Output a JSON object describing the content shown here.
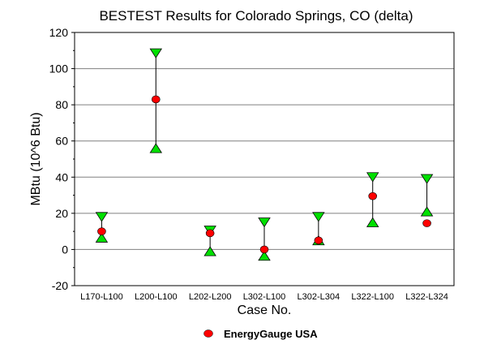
{
  "chart_data": {
    "type": "scatter",
    "title": "BESTEST Results for Colorado Springs, CO (delta)",
    "xlabel": "Case No.",
    "ylabel": "MBtu (10^6 Btu)",
    "ylim": [
      -20,
      120
    ],
    "yticks": [
      -20,
      0,
      20,
      40,
      60,
      80,
      100,
      120
    ],
    "grid": "horizontal",
    "legend_position": "bottom-center",
    "categories": [
      "L170-L100",
      "L200-L100",
      "L202-L200",
      "L302-L100",
      "L302-L304",
      "L322-L100",
      "L322-L324"
    ],
    "range_min": [
      6.5,
      56,
      -1,
      -3.5,
      5,
      15,
      21
    ],
    "range_max": [
      18,
      108.5,
      10.5,
      15,
      18,
      40,
      39
    ],
    "series": [
      {
        "name": "EnergyGauge USA",
        "values": [
          10,
          83,
          9,
          0,
          5,
          29.5,
          14.5
        ]
      }
    ]
  },
  "colors": {
    "point": "#ff0000",
    "triangle": "#00e000",
    "grid": "#808080"
  }
}
